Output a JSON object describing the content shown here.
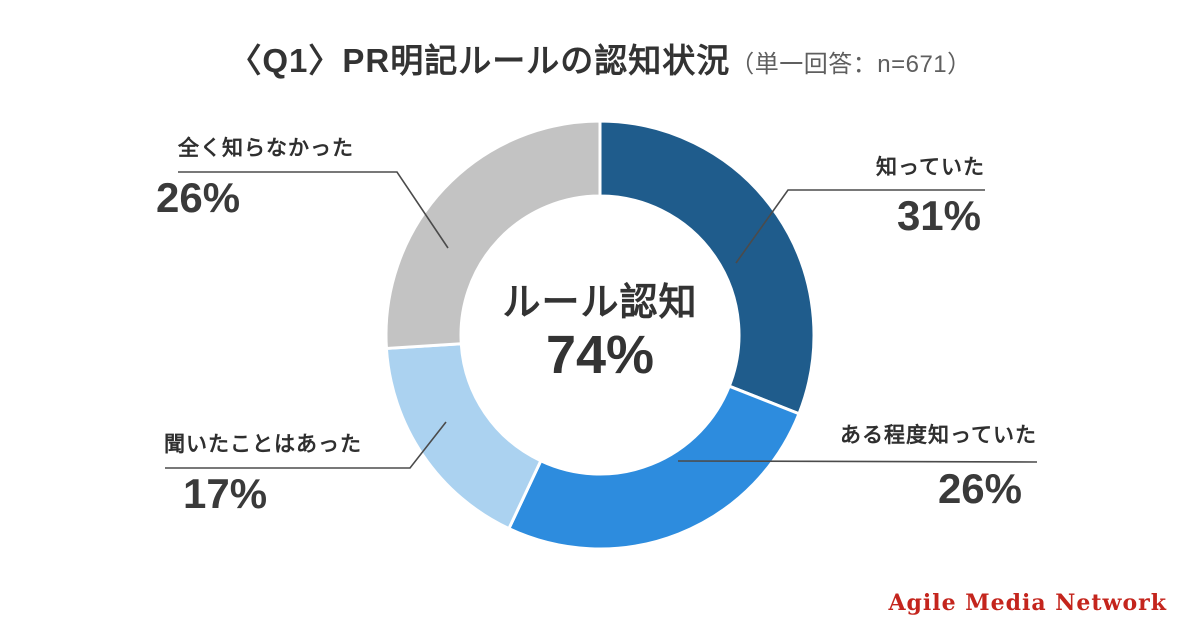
{
  "header": {
    "title": "〈Q1〉PR明記ルールの認知状況",
    "subtitle": "（単一回答：n=671）"
  },
  "chart_data": {
    "type": "pie",
    "variant": "donut",
    "title": "〈Q1〉PR明記ルールの認知状況",
    "sample_note": "単一回答：n=671",
    "n": 671,
    "categories": [
      "知っていた",
      "ある程度知っていた",
      "聞いたことはあった",
      "全く知らなかった"
    ],
    "values": [
      31,
      26,
      17,
      26
    ],
    "unit": "%",
    "colors": [
      "#1F5C8C",
      "#2D8CDE",
      "#ABD2F0",
      "#C3C3C3"
    ],
    "start_angle_deg": 0,
    "direction": "clockwise",
    "donut_hole_ratio": 0.65,
    "legend_position": "callout-labels",
    "center_label": {
      "line1": "ルール認知",
      "line2": "74%"
    }
  },
  "callouts": [
    {
      "id": "knew",
      "label": "知っていた",
      "value": "31%"
    },
    {
      "id": "somewhat",
      "label": "ある程度知っていた",
      "value": "26%"
    },
    {
      "id": "heard",
      "label": "聞いたことはあった",
      "value": "17%"
    },
    {
      "id": "unknown",
      "label": "全く知らなかった",
      "value": "26%"
    }
  ],
  "footer": {
    "logo_text": "Agile Media Network",
    "logo_color": "#C4251D"
  },
  "style_tokens": {
    "leader_line_color": "#4b4b4b",
    "text_dark": "#333333",
    "subtitle_gray": "#5f5f5f"
  }
}
